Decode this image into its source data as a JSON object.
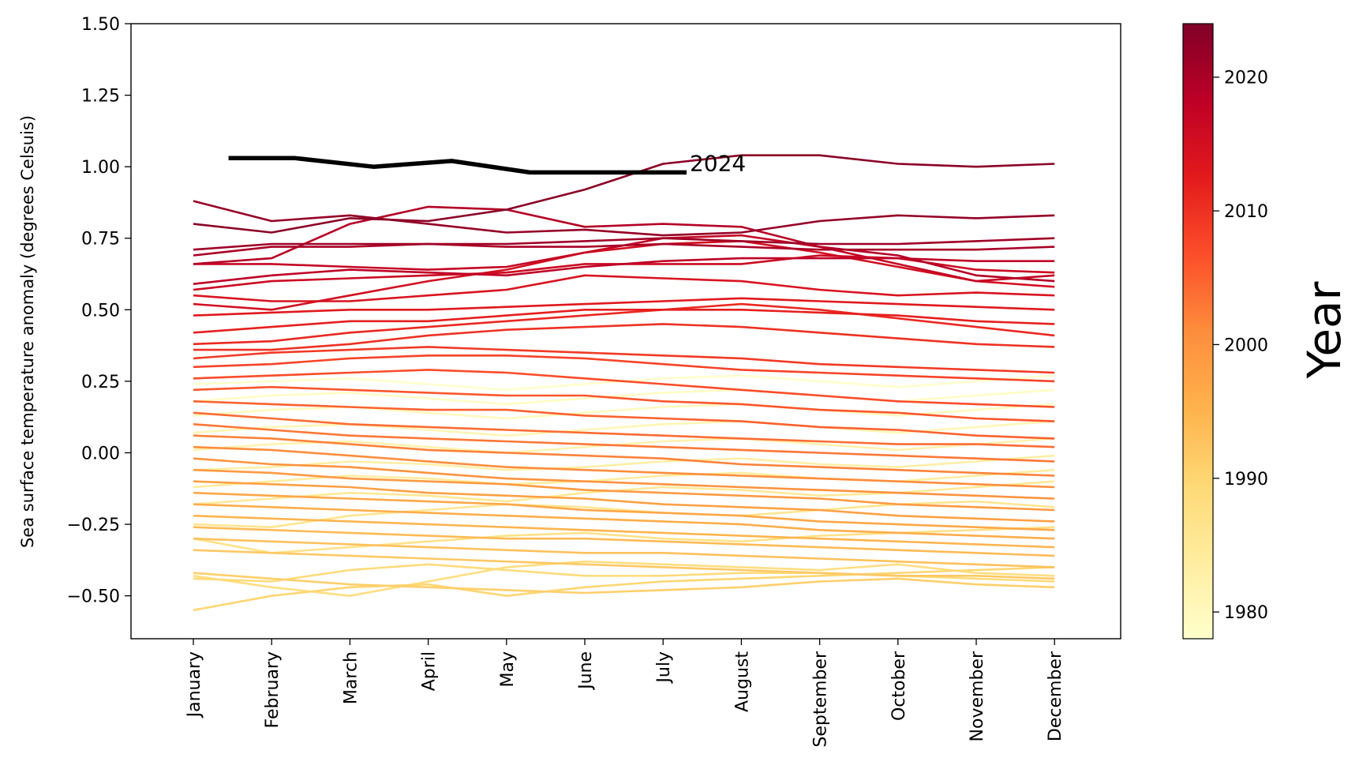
{
  "chart_data": {
    "type": "line",
    "title": "",
    "xlabel": "",
    "ylabel": "Sea surface temperature anomaly (degrees Celsuis)",
    "ylim": [
      -0.65,
      1.5
    ],
    "yticks": [
      1.5,
      1.25,
      1.0,
      0.75,
      0.5,
      0.25,
      0.0,
      -0.25,
      -0.5
    ],
    "ytick_labels": [
      "1.50",
      "1.25",
      "1.00",
      "0.75",
      "0.50",
      "0.25",
      "0.00",
      "−0.25",
      "−0.50"
    ],
    "x_categories": [
      "January",
      "February",
      "March",
      "April",
      "May",
      "June",
      "July",
      "August",
      "September",
      "October",
      "November",
      "December"
    ],
    "grid": false,
    "legend": "none",
    "colorbar": {
      "label": "Year",
      "range": [
        1978,
        2024
      ],
      "ticks": [
        1980,
        1990,
        2000,
        2010,
        2020
      ],
      "colormap": [
        "#ffffcc",
        "#ffeda0",
        "#fed976",
        "#feb24c",
        "#fd8d3c",
        "#fc4e2a",
        "#e31a1c",
        "#bd0026",
        "#800026"
      ]
    },
    "highlight": {
      "label": "2024",
      "color": "#000000",
      "x": [
        0.45,
        1.3,
        2.3,
        3.3,
        4.3,
        5.3,
        6.3
      ],
      "values": [
        1.03,
        1.03,
        1.0,
        1.02,
        0.98,
        0.98,
        0.98
      ]
    },
    "series": [
      {
        "year": 2023,
        "values": [
          0.8,
          0.77,
          0.82,
          0.81,
          0.85,
          0.92,
          1.01,
          1.04,
          1.04,
          1.01,
          1.0,
          1.01
        ]
      },
      {
        "year": 2022,
        "values": [
          0.88,
          0.81,
          0.83,
          0.8,
          0.77,
          0.78,
          0.76,
          0.77,
          0.81,
          0.83,
          0.82,
          0.83
        ]
      },
      {
        "year": 2021,
        "values": [
          0.71,
          0.73,
          0.73,
          0.73,
          0.73,
          0.74,
          0.75,
          0.74,
          0.73,
          0.73,
          0.74,
          0.75
        ]
      },
      {
        "year": 2020,
        "values": [
          0.69,
          0.72,
          0.72,
          0.73,
          0.72,
          0.72,
          0.73,
          0.72,
          0.71,
          0.71,
          0.71,
          0.72
        ]
      },
      {
        "year": 2019,
        "values": [
          0.66,
          0.68,
          0.8,
          0.86,
          0.85,
          0.79,
          0.8,
          0.79,
          0.72,
          0.69,
          0.62,
          0.6
        ]
      },
      {
        "year": 2018,
        "values": [
          0.59,
          0.62,
          0.64,
          0.63,
          0.62,
          0.65,
          0.67,
          0.68,
          0.68,
          0.68,
          0.67,
          0.67
        ]
      },
      {
        "year": 2017,
        "values": [
          0.66,
          0.66,
          0.65,
          0.64,
          0.65,
          0.7,
          0.75,
          0.76,
          0.72,
          0.66,
          0.6,
          0.62
        ]
      },
      {
        "year": 2016,
        "values": [
          0.57,
          0.6,
          0.61,
          0.62,
          0.63,
          0.66,
          0.66,
          0.66,
          0.69,
          0.68,
          0.64,
          0.63
        ]
      },
      {
        "year": 2015,
        "values": [
          0.52,
          0.5,
          0.55,
          0.6,
          0.64,
          0.7,
          0.73,
          0.74,
          0.7,
          0.65,
          0.6,
          0.58
        ]
      },
      {
        "year": 2014,
        "values": [
          0.55,
          0.53,
          0.53,
          0.55,
          0.57,
          0.62,
          0.61,
          0.6,
          0.57,
          0.55,
          0.56,
          0.55
        ]
      },
      {
        "year": 2013,
        "values": [
          0.48,
          0.49,
          0.5,
          0.5,
          0.51,
          0.52,
          0.53,
          0.54,
          0.53,
          0.52,
          0.51,
          0.5
        ]
      },
      {
        "year": 2012,
        "values": [
          0.42,
          0.44,
          0.46,
          0.46,
          0.48,
          0.5,
          0.5,
          0.5,
          0.49,
          0.48,
          0.46,
          0.45
        ]
      },
      {
        "year": 2011,
        "values": [
          0.38,
          0.39,
          0.42,
          0.44,
          0.46,
          0.48,
          0.5,
          0.52,
          0.5,
          0.47,
          0.44,
          0.41
        ]
      },
      {
        "year": 2010,
        "values": [
          0.36,
          0.36,
          0.38,
          0.41,
          0.43,
          0.44,
          0.45,
          0.44,
          0.42,
          0.4,
          0.38,
          0.37
        ]
      },
      {
        "year": 2009,
        "values": [
          0.33,
          0.35,
          0.36,
          0.37,
          0.36,
          0.35,
          0.34,
          0.33,
          0.31,
          0.3,
          0.29,
          0.28
        ]
      },
      {
        "year": 2008,
        "values": [
          0.3,
          0.31,
          0.33,
          0.34,
          0.34,
          0.33,
          0.31,
          0.29,
          0.28,
          0.27,
          0.26,
          0.25
        ]
      },
      {
        "year": 2007,
        "values": [
          0.26,
          0.27,
          0.28,
          0.29,
          0.28,
          0.26,
          0.24,
          0.22,
          0.2,
          0.18,
          0.17,
          0.16
        ]
      },
      {
        "year": 2006,
        "values": [
          0.22,
          0.23,
          0.22,
          0.21,
          0.2,
          0.2,
          0.18,
          0.17,
          0.15,
          0.14,
          0.12,
          0.11
        ]
      },
      {
        "year": 2005,
        "values": [
          0.18,
          0.17,
          0.16,
          0.15,
          0.15,
          0.13,
          0.12,
          0.11,
          0.09,
          0.08,
          0.06,
          0.05
        ]
      },
      {
        "year": 2004,
        "values": [
          0.14,
          0.12,
          0.1,
          0.09,
          0.08,
          0.07,
          0.06,
          0.05,
          0.04,
          0.03,
          0.03,
          0.02
        ]
      },
      {
        "year": 2003,
        "values": [
          0.1,
          0.08,
          0.06,
          0.05,
          0.04,
          0.03,
          0.02,
          0.01,
          0.0,
          -0.01,
          -0.02,
          -0.03
        ]
      },
      {
        "year": 2002,
        "values": [
          0.06,
          0.05,
          0.03,
          0.01,
          0.0,
          -0.01,
          -0.02,
          -0.04,
          -0.05,
          -0.06,
          -0.07,
          -0.08
        ]
      },
      {
        "year": 2001,
        "values": [
          0.02,
          0.01,
          -0.01,
          -0.03,
          -0.05,
          -0.06,
          -0.07,
          -0.08,
          -0.09,
          -0.1,
          -0.11,
          -0.12
        ]
      },
      {
        "year": 2000,
        "values": [
          -0.02,
          -0.04,
          -0.05,
          -0.07,
          -0.09,
          -0.1,
          -0.11,
          -0.12,
          -0.13,
          -0.14,
          -0.15,
          -0.16
        ]
      },
      {
        "year": 1999,
        "values": [
          -0.06,
          -0.07,
          -0.09,
          -0.1,
          -0.11,
          -0.13,
          -0.14,
          -0.15,
          -0.16,
          -0.18,
          -0.19,
          -0.2
        ]
      },
      {
        "year": 1998,
        "values": [
          -0.1,
          -0.11,
          -0.12,
          -0.14,
          -0.15,
          -0.16,
          -0.18,
          -0.19,
          -0.2,
          -0.22,
          -0.23,
          -0.24
        ]
      },
      {
        "year": 1997,
        "values": [
          -0.14,
          -0.15,
          -0.16,
          -0.17,
          -0.18,
          -0.2,
          -0.21,
          -0.22,
          -0.24,
          -0.25,
          -0.26,
          -0.27
        ]
      },
      {
        "year": 1996,
        "values": [
          -0.18,
          -0.19,
          -0.2,
          -0.21,
          -0.22,
          -0.23,
          -0.24,
          -0.25,
          -0.27,
          -0.28,
          -0.29,
          -0.3
        ]
      },
      {
        "year": 1995,
        "values": [
          -0.22,
          -0.23,
          -0.24,
          -0.25,
          -0.26,
          -0.27,
          -0.28,
          -0.29,
          -0.3,
          -0.31,
          -0.32,
          -0.33
        ]
      },
      {
        "year": 1994,
        "values": [
          -0.26,
          -0.27,
          -0.28,
          -0.29,
          -0.3,
          -0.3,
          -0.31,
          -0.32,
          -0.33,
          -0.34,
          -0.35,
          -0.36
        ]
      },
      {
        "year": 1993,
        "values": [
          -0.3,
          -0.31,
          -0.32,
          -0.33,
          -0.34,
          -0.35,
          -0.35,
          -0.36,
          -0.37,
          -0.38,
          -0.39,
          -0.4
        ]
      },
      {
        "year": 1992,
        "values": [
          -0.34,
          -0.35,
          -0.36,
          -0.37,
          -0.38,
          -0.39,
          -0.4,
          -0.41,
          -0.42,
          -0.43,
          -0.43,
          -0.44
        ]
      },
      {
        "year": 1991,
        "values": [
          -0.42,
          -0.44,
          -0.46,
          -0.47,
          -0.48,
          -0.49,
          -0.48,
          -0.47,
          -0.45,
          -0.44,
          -0.46,
          -0.47
        ]
      },
      {
        "year": 1990,
        "values": [
          -0.55,
          -0.5,
          -0.47,
          -0.46,
          -0.5,
          -0.47,
          -0.45,
          -0.44,
          -0.43,
          -0.42,
          -0.41,
          -0.4
        ]
      },
      {
        "year": 1989,
        "values": [
          -0.44,
          -0.45,
          -0.41,
          -0.39,
          -0.41,
          -0.43,
          -0.43,
          -0.42,
          -0.42,
          -0.43,
          -0.44,
          -0.45
        ]
      },
      {
        "year": 1988,
        "values": [
          -0.43,
          -0.47,
          -0.5,
          -0.45,
          -0.4,
          -0.38,
          -0.39,
          -0.4,
          -0.41,
          -0.39,
          -0.42,
          -0.43
        ]
      },
      {
        "year": 1987,
        "values": [
          -0.3,
          -0.35,
          -0.33,
          -0.31,
          -0.29,
          -0.28,
          -0.3,
          -0.31,
          -0.29,
          -0.28,
          -0.27,
          -0.26
        ]
      },
      {
        "year": 1986,
        "values": [
          -0.25,
          -0.26,
          -0.22,
          -0.2,
          -0.18,
          -0.19,
          -0.21,
          -0.22,
          -0.2,
          -0.18,
          -0.17,
          -0.19
        ]
      },
      {
        "year": 1985,
        "values": [
          -0.18,
          -0.16,
          -0.14,
          -0.15,
          -0.17,
          -0.14,
          -0.12,
          -0.13,
          -0.15,
          -0.14,
          -0.12,
          -0.1
        ]
      },
      {
        "year": 1984,
        "values": [
          -0.12,
          -0.1,
          -0.08,
          -0.09,
          -0.11,
          -0.1,
          -0.08,
          -0.07,
          -0.09,
          -0.1,
          -0.08,
          -0.06
        ]
      },
      {
        "year": 1983,
        "values": [
          -0.06,
          -0.05,
          -0.03,
          -0.04,
          -0.06,
          -0.05,
          -0.03,
          -0.02,
          -0.04,
          -0.05,
          -0.03,
          -0.01
        ]
      },
      {
        "year": 1982,
        "values": [
          0.01,
          0.03,
          0.04,
          0.02,
          0.0,
          0.02,
          0.04,
          0.05,
          0.03,
          0.01,
          0.03,
          0.05
        ]
      },
      {
        "year": 1981,
        "values": [
          0.07,
          0.09,
          0.1,
          0.08,
          0.06,
          0.08,
          0.1,
          0.11,
          0.09,
          0.07,
          0.09,
          0.11
        ]
      },
      {
        "year": 1980,
        "values": [
          0.13,
          0.15,
          0.16,
          0.14,
          0.12,
          0.14,
          0.16,
          0.17,
          0.15,
          0.13,
          0.15,
          0.17
        ]
      },
      {
        "year": 1979,
        "values": [
          0.18,
          0.2,
          0.21,
          0.19,
          0.17,
          0.19,
          0.21,
          0.22,
          0.2,
          0.18,
          0.2,
          0.22
        ]
      },
      {
        "year": 1978,
        "values": [
          0.24,
          0.25,
          0.26,
          0.24,
          0.22,
          0.24,
          0.26,
          0.27,
          0.25,
          0.23,
          0.25,
          0.27
        ]
      }
    ]
  }
}
